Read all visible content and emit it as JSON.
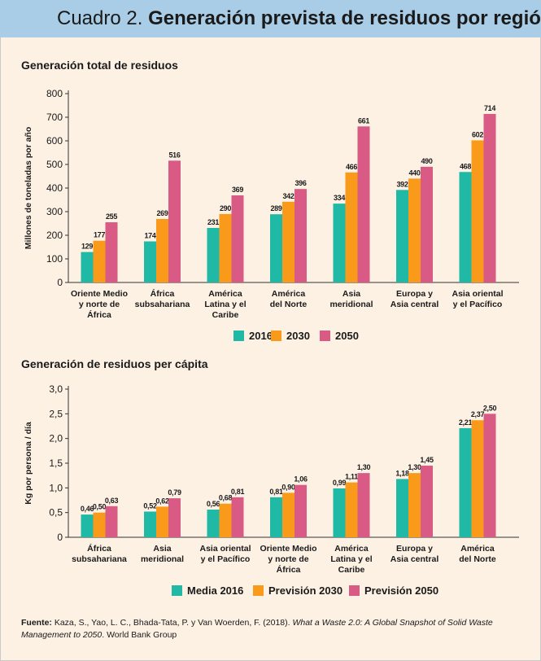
{
  "header": {
    "lead": "Cuadro 2.",
    "title": "Generación prevista de residuos por región"
  },
  "chart_data": [
    {
      "type": "bar",
      "title": "Generación total de residuos",
      "ylabel": "Millones de toneladas por año",
      "xlabel": "",
      "ylim": [
        0,
        800
      ],
      "yticks": [
        "0",
        "100",
        "200",
        "300",
        "400",
        "500",
        "600",
        "700",
        "800"
      ],
      "categories": [
        [
          "Oriente Medio",
          "y norte de",
          "África"
        ],
        [
          "África",
          "subsahariana"
        ],
        [
          "América",
          "Latina y el",
          "Caribe"
        ],
        [
          "América",
          "del Norte"
        ],
        [
          "Asia",
          "meridional"
        ],
        [
          "Europa y",
          "Asia central"
        ],
        [
          "Asia oriental",
          "y el Pacífico"
        ]
      ],
      "series": [
        {
          "name": "2016",
          "color": "#1fb9a5",
          "values": [
            129,
            174,
            231,
            289,
            334,
            392,
            468
          ],
          "labels": [
            "129",
            "174",
            "231",
            "289",
            "334",
            "392",
            "468"
          ]
        },
        {
          "name": "2030",
          "color": "#f99a1a",
          "values": [
            177,
            269,
            290,
            342,
            466,
            440,
            602
          ],
          "labels": [
            "177",
            "269",
            "290",
            "342",
            "466",
            "440",
            "602"
          ]
        },
        {
          "name": "2050",
          "color": "#d95b85",
          "values": [
            255,
            516,
            369,
            396,
            661,
            490,
            714
          ],
          "labels": [
            "255",
            "516",
            "369",
            "396",
            "661",
            "490",
            "714"
          ]
        }
      ],
      "legend": "bottom-center"
    },
    {
      "type": "bar",
      "title": "Generación de residuos per cápita",
      "ylabel": "Kg por persona / día",
      "xlabel": "",
      "ylim": [
        0,
        3
      ],
      "yticks": [
        "0",
        "0,5",
        "1,0",
        "1,5",
        "2,0",
        "2,5",
        "3,0"
      ],
      "categories": [
        [
          "África",
          "subsahariana"
        ],
        [
          "Asia",
          "meridional"
        ],
        [
          "Asia oriental",
          "y el Pacífico"
        ],
        [
          "Oriente Medio",
          "y norte de",
          "África"
        ],
        [
          "América",
          "Latina y el",
          "Caribe"
        ],
        [
          "Europa y",
          "Asia central"
        ],
        [
          "América",
          "del Norte"
        ]
      ],
      "series": [
        {
          "name": "Media 2016",
          "color": "#1fb9a5",
          "values": [
            0.46,
            0.52,
            0.56,
            0.81,
            0.99,
            1.18,
            2.21
          ],
          "labels": [
            "0,46",
            "0,52",
            "0,56",
            "0,81",
            "0,99",
            "1,18",
            "2,21"
          ]
        },
        {
          "name": "Previsión 2030",
          "color": "#f99a1a",
          "values": [
            0.5,
            0.62,
            0.68,
            0.9,
            1.11,
            1.3,
            2.37
          ],
          "labels": [
            "0,50",
            "0,62",
            "0,68",
            "0,90",
            "1,11",
            "1,30",
            "2,37"
          ]
        },
        {
          "name": "Previsión 2050",
          "color": "#d95b85",
          "values": [
            0.63,
            0.79,
            0.81,
            1.06,
            1.3,
            1.45,
            2.5
          ],
          "labels": [
            "0,63",
            "0,79",
            "0,81",
            "1,06",
            "1,30",
            "1,45",
            "2,50"
          ]
        }
      ],
      "legend": "bottom-center"
    }
  ],
  "source": {
    "label": "Fuente:",
    "authors": "Kaza, S., Yao, L. C., Bhada-Tata, P. y Van Woerden, F. (2018).",
    "work": "What a Waste 2.0: A Global Snapshot of Solid Waste Management to 2050",
    "publisher": ". World Bank Group"
  }
}
